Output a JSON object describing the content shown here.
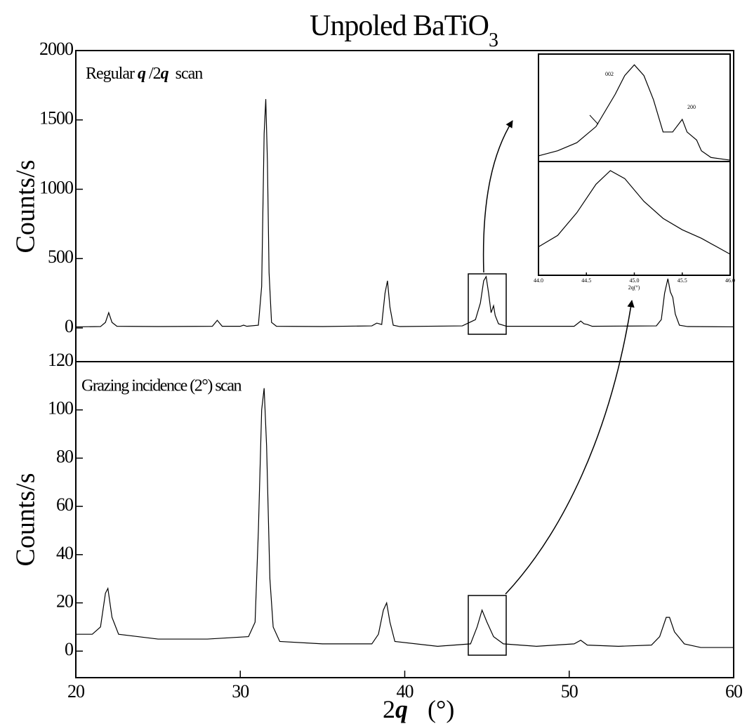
{
  "chart_data": [
    {
      "type": "line",
      "title": "Unpoled BaTiO",
      "title_sub": "3",
      "annotation": [
        "Regular ",
        "q",
        " /2",
        "q",
        "  scan"
      ],
      "ylabel": "Counts/s",
      "color": "#000000",
      "x": [
        20,
        21.5,
        21.8,
        22.0,
        22.2,
        22.5,
        25,
        28.3,
        28.6,
        28.9,
        30.0,
        30.2,
        30.4,
        31.1,
        31.3,
        31.45,
        31.55,
        31.65,
        31.75,
        31.9,
        32.2,
        35,
        38.0,
        38.3,
        38.6,
        38.8,
        38.95,
        39.1,
        39.3,
        39.7,
        43.5,
        44.3,
        44.6,
        44.8,
        44.95,
        45.1,
        45.25,
        45.4,
        45.5,
        45.7,
        46.2,
        50.3,
        50.6,
        50.7,
        50.9,
        51.1,
        51.4,
        55.3,
        55.6,
        55.8,
        56.0,
        56.15,
        56.3,
        56.45,
        56.7,
        57.2,
        60
      ],
      "values": [
        8,
        10,
        40,
        110,
        40,
        12,
        10,
        12,
        55,
        12,
        12,
        20,
        12,
        20,
        300,
        1400,
        1650,
        1200,
        400,
        40,
        12,
        10,
        15,
        35,
        25,
        250,
        340,
        150,
        20,
        10,
        15,
        60,
        180,
        340,
        370,
        250,
        110,
        160,
        90,
        30,
        12,
        12,
        40,
        50,
        30,
        25,
        12,
        15,
        60,
        250,
        355,
        260,
        220,
        100,
        20,
        10,
        8
      ],
      "xlim": [
        20,
        60
      ],
      "ylim": [
        -243,
        2000
      ],
      "yticks": [
        0,
        500,
        1000,
        1500,
        2000
      ]
    },
    {
      "type": "line",
      "annotation": "Grazing incidence (2°) scan",
      "ylabel": "Counts/s",
      "xlabel": [
        "2",
        "q",
        "(°)"
      ],
      "color": "#000000",
      "x": [
        20,
        21.0,
        21.5,
        21.8,
        21.95,
        22.2,
        22.6,
        25,
        28,
        30.5,
        30.9,
        31.1,
        31.3,
        31.45,
        31.6,
        31.8,
        32.0,
        32.4,
        35,
        38,
        38.4,
        38.7,
        38.9,
        39.1,
        39.4,
        42,
        44,
        44.4,
        44.7,
        45.0,
        45.4,
        46,
        48,
        50.3,
        50.7,
        51.1,
        53,
        55,
        55.5,
        55.9,
        56.1,
        56.4,
        57,
        58,
        60
      ],
      "values": [
        7,
        7,
        10,
        24,
        26,
        14,
        7,
        5,
        5,
        6,
        12,
        50,
        100,
        109,
        85,
        30,
        10,
        4,
        3,
        3,
        7,
        17,
        20,
        12,
        4,
        2,
        3,
        10,
        17,
        12,
        6,
        3,
        2,
        3,
        4.5,
        2.5,
        2,
        2.5,
        6,
        14,
        14,
        8,
        3,
        1.5,
        1.5
      ],
      "xlim": [
        20,
        60
      ],
      "ylim": [
        -11,
        120
      ],
      "xticks": [
        20,
        30,
        40,
        50,
        60
      ],
      "yticks": [
        0,
        20,
        40,
        60,
        80,
        100,
        120
      ]
    },
    {
      "type": "line",
      "peak_labels": [
        "002",
        "200"
      ],
      "color": "#000000",
      "x": [
        44.0,
        44.2,
        44.4,
        44.6,
        44.8,
        44.9,
        45.0,
        45.1,
        45.2,
        45.3,
        45.4,
        45.5,
        45.55,
        45.6,
        45.65,
        45.7,
        45.8,
        46.0
      ],
      "values": [
        21,
        40,
        70,
        130,
        250,
        320,
        360,
        320,
        230,
        110,
        110,
        157,
        110,
        95,
        80,
        40,
        15,
        5
      ],
      "xlim": [
        44,
        46
      ],
      "ylim": [
        0,
        400
      ]
    },
    {
      "type": "line",
      "xlabel": "2q(°)",
      "color": "#000000",
      "x": [
        44.0,
        44.2,
        44.4,
        44.6,
        44.75,
        44.9,
        45.1,
        45.3,
        45.5,
        45.7,
        46.0
      ],
      "values": [
        5,
        7,
        11,
        16,
        18.4,
        17,
        13,
        10,
        8,
        6.5,
        3.7
      ],
      "xlim": [
        44,
        46
      ],
      "ylim": [
        0,
        20
      ],
      "xticks": [
        {
          "value": 44,
          "label": "44.0"
        },
        {
          "value": 44.5,
          "label": "44.5"
        },
        {
          "value": 45,
          "label": "45.0"
        },
        {
          "value": 45.5,
          "label": "45.5"
        },
        {
          "value": 46,
          "label": "46.0"
        }
      ]
    }
  ]
}
